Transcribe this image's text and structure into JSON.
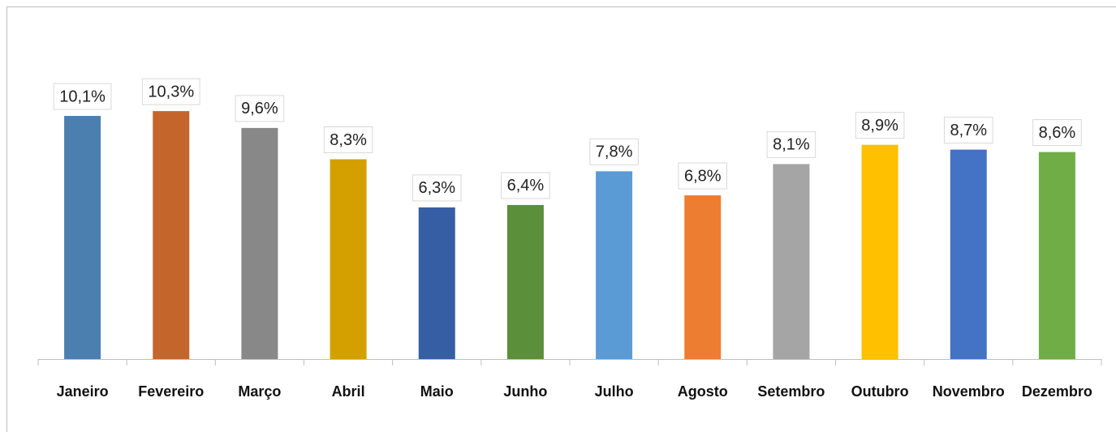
{
  "chart_data": {
    "type": "bar",
    "categories": [
      "Janeiro",
      "Fevereiro",
      "Março",
      "Abril",
      "Maio",
      "Junho",
      "Julho",
      "Agosto",
      "Setembro",
      "Outubro",
      "Novembro",
      "Dezembro"
    ],
    "values": [
      10.1,
      10.3,
      9.6,
      8.3,
      6.3,
      6.4,
      7.8,
      6.8,
      8.1,
      8.9,
      8.7,
      8.6
    ],
    "value_labels": [
      "10,1%",
      "10,3%",
      "9,6%",
      "8,3%",
      "6,3%",
      "6,4%",
      "7,8%",
      "6,8%",
      "8,1%",
      "8,9%",
      "8,7%",
      "8,6%"
    ],
    "colors": [
      "#4a7fb0",
      "#c4652b",
      "#888888",
      "#d4a000",
      "#365ea5",
      "#5b8f3a",
      "#5b9bd5",
      "#ed7d31",
      "#a5a5a5",
      "#ffc000",
      "#4472c4",
      "#70ad47"
    ]
  }
}
